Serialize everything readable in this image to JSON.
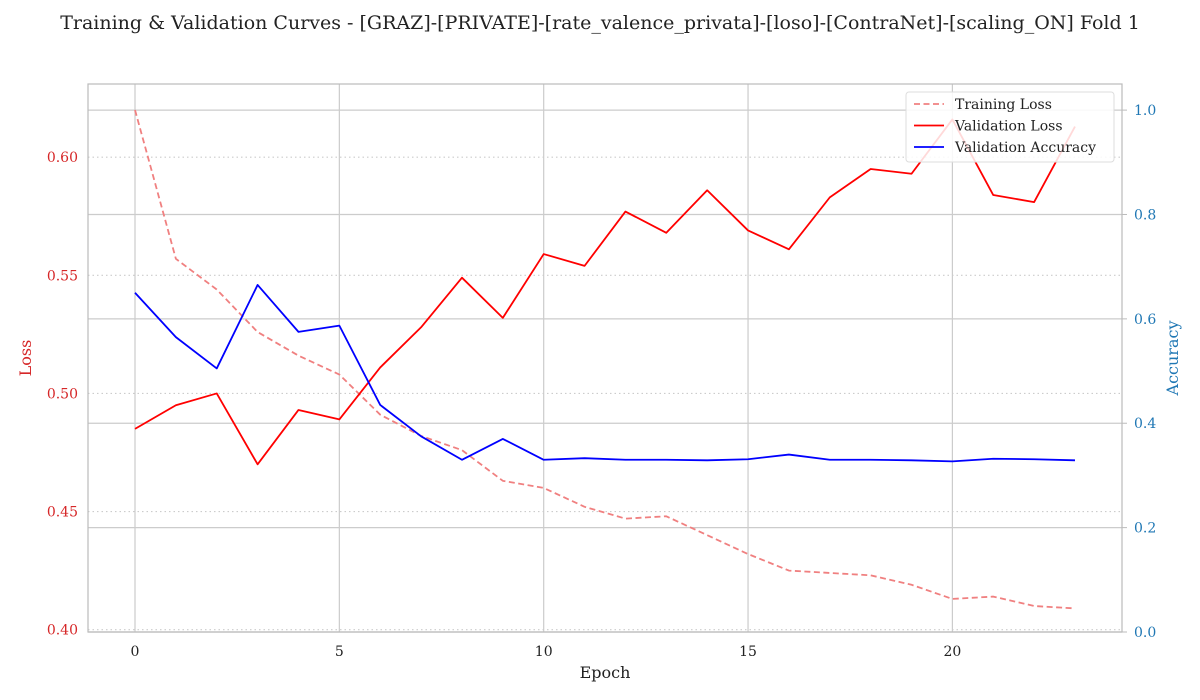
{
  "chart_data": {
    "type": "line",
    "title": "Training & Validation Curves - [GRAZ]-[PRIVATE]-[rate_valence_privata]-[loso]-[ContraNet]-[scaling_ON] Fold 1",
    "xlabel": "Epoch",
    "ylabel_left": "Loss",
    "ylabel_right": "Accuracy",
    "x": [
      0,
      1,
      2,
      3,
      4,
      5,
      6,
      7,
      8,
      9,
      10,
      11,
      12,
      13,
      14,
      15,
      16,
      17,
      18,
      19,
      20,
      21,
      22,
      23
    ],
    "xlim": [
      -1.15,
      24.15
    ],
    "ylim_left": [
      0.399,
      0.631
    ],
    "ylim_right": [
      0.0,
      1.05
    ],
    "xticks": [
      0,
      5,
      10,
      15,
      20
    ],
    "xtick_labels": [
      "0",
      "5",
      "10",
      "15",
      "20"
    ],
    "yticks_left": [
      0.4,
      0.45,
      0.5,
      0.55,
      0.6
    ],
    "ytick_labels_left": [
      "0.40",
      "0.45",
      "0.50",
      "0.55",
      "0.60"
    ],
    "yticks_right": [
      0.0,
      0.2,
      0.4,
      0.6,
      0.8,
      1.0
    ],
    "ytick_labels_right": [
      "0.0",
      "0.2",
      "0.4",
      "0.6",
      "0.8",
      "1.0"
    ],
    "grid": true,
    "legend_position": "top-right",
    "series": [
      {
        "name": "Training Loss",
        "axis": "left",
        "style": "dashed",
        "color": "#f08080",
        "values": [
          0.62,
          0.557,
          0.544,
          0.526,
          0.516,
          0.508,
          0.491,
          0.482,
          0.476,
          0.463,
          0.46,
          0.452,
          0.447,
          0.448,
          0.44,
          0.432,
          0.425,
          0.424,
          0.423,
          0.419,
          0.413,
          0.414,
          0.41,
          0.409
        ]
      },
      {
        "name": "Validation Loss",
        "axis": "left",
        "style": "solid",
        "color": "#ff0000",
        "values": [
          0.485,
          0.495,
          0.5,
          0.47,
          0.493,
          0.489,
          0.511,
          0.528,
          0.549,
          0.532,
          0.559,
          0.554,
          0.577,
          0.568,
          0.586,
          0.569,
          0.561,
          0.583,
          0.595,
          0.593,
          0.616,
          0.584,
          0.581,
          0.613
        ]
      },
      {
        "name": "Validation Accuracy",
        "axis": "right",
        "style": "solid",
        "color": "#0000ff",
        "values": [
          0.65,
          0.565,
          0.505,
          0.665,
          0.575,
          0.587,
          0.435,
          0.375,
          0.33,
          0.37,
          0.33,
          0.333,
          0.33,
          0.33,
          0.329,
          0.331,
          0.34,
          0.33,
          0.33,
          0.329,
          0.327,
          0.332,
          0.331,
          0.329
        ]
      }
    ],
    "colors": {
      "left_axis": "#d62728",
      "right_axis": "#1f77b4",
      "grid": "#cccccc",
      "frame": "#bbbbbb",
      "text": "#222222"
    }
  }
}
